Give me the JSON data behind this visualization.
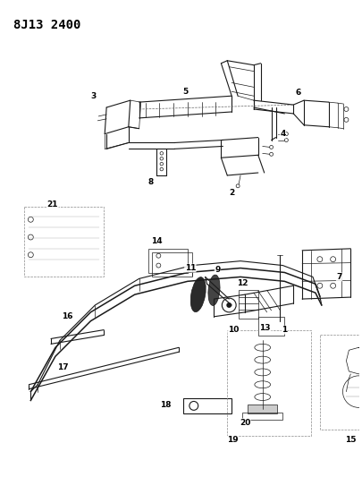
{
  "title": "8J13 2400",
  "bg_color": "#ffffff",
  "line_color": "#1a1a1a",
  "label_color": "#000000",
  "title_fontsize": 10,
  "label_fontsize": 6.5,
  "fig_width": 4.05,
  "fig_height": 5.33,
  "dpi": 100
}
